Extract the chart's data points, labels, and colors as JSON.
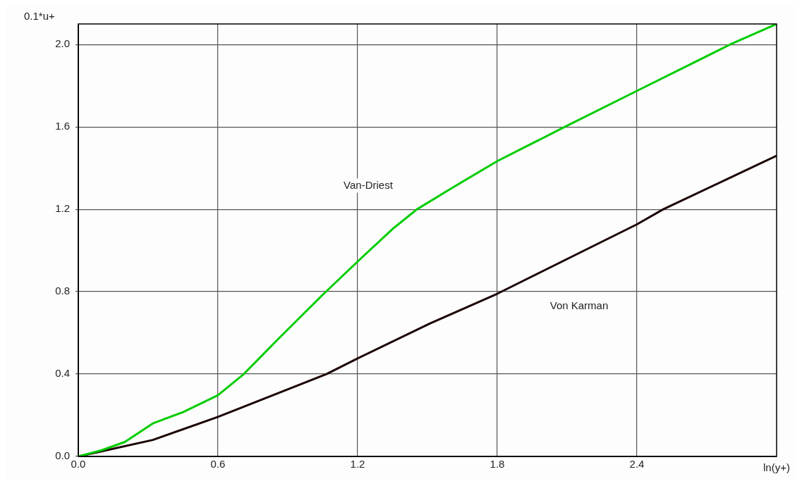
{
  "chart_data": {
    "type": "line",
    "xlabel": "ln(y+)",
    "ylabel": "0.1*u+",
    "xlim": [
      0,
      3
    ],
    "xticks": [
      {
        "value": 0,
        "label": "0.0"
      },
      {
        "value": 0.6,
        "label": "0.6"
      },
      {
        "value": 1.2,
        "label": "1.2"
      },
      {
        "value": 1.8,
        "label": "1.8"
      },
      {
        "value": 2.4,
        "label": "2.4"
      }
    ],
    "ylim": [
      0,
      2.1
    ],
    "yticks": [
      {
        "value": 0,
        "label": "0.0"
      },
      0.4,
      0.8,
      1.2,
      1.6,
      {
        "value": 2,
        "label": "2.0"
      }
    ],
    "grid": true,
    "legend": false,
    "marker": "none",
    "line_style": "solid",
    "series": [
      {
        "name": "Van-Driest",
        "color": "#00cc00",
        "x": [
          0,
          0.1,
          0.2,
          0.32,
          0.45,
          0.6,
          0.711,
          0.85,
          1.05,
          1.209,
          1.356,
          1.455,
          1.6,
          1.8,
          2.09,
          2.4,
          2.8,
          3.0
        ],
        "values": [
          0,
          0.03,
          0.07,
          0.16,
          0.215,
          0.297,
          0.4,
          0.56,
          0.785,
          0.956,
          1.11,
          1.2,
          1.3,
          1.434,
          1.6,
          1.775,
          2.0,
          2.1
        ]
      },
      {
        "name": "Von Karman",
        "color": "#1a0000",
        "x": [
          0,
          0.1,
          0.32,
          0.6,
          1.066,
          1.2,
          1.51,
          1.8,
          2.4,
          2.513,
          3.0
        ],
        "values": [
          0,
          0.025,
          0.08,
          0.192,
          0.4,
          0.476,
          0.645,
          0.79,
          1.127,
          1.2,
          1.46
        ]
      }
    ]
  }
}
